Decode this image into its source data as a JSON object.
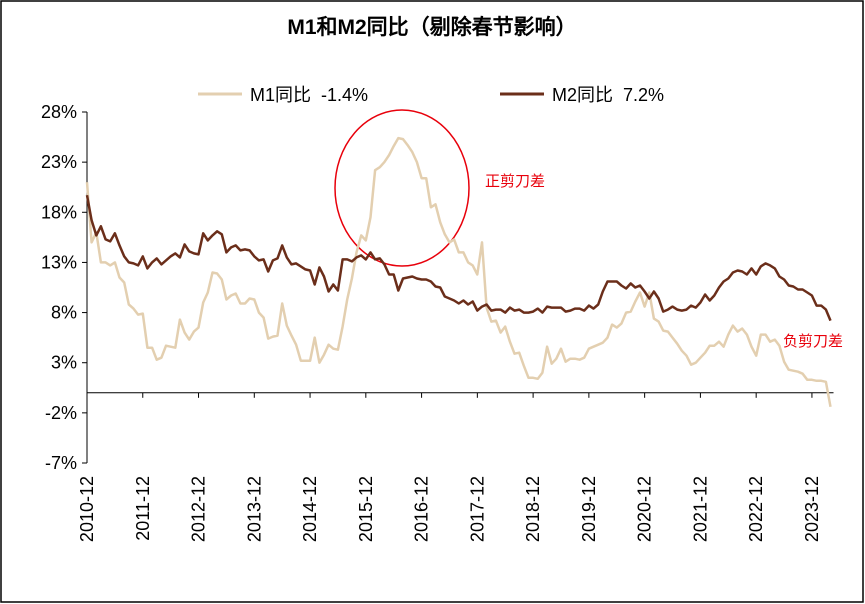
{
  "chart_data": {
    "type": "line",
    "title": "M1和M2同比（剔除春节影响）",
    "categories": [
      "2010-12",
      null,
      null,
      null,
      null,
      null,
      null,
      null,
      null,
      null,
      null,
      null,
      "2011-12",
      null,
      null,
      null,
      null,
      null,
      null,
      null,
      null,
      null,
      null,
      null,
      "2012-12",
      null,
      null,
      null,
      null,
      null,
      null,
      null,
      null,
      null,
      null,
      null,
      "2013-12",
      null,
      null,
      null,
      null,
      null,
      null,
      null,
      null,
      null,
      null,
      null,
      "2014-12",
      null,
      null,
      null,
      null,
      null,
      null,
      null,
      null,
      null,
      null,
      null,
      "2015-12",
      null,
      null,
      null,
      null,
      null,
      null,
      null,
      null,
      null,
      null,
      null,
      "2016-12",
      null,
      null,
      null,
      null,
      null,
      null,
      null,
      null,
      null,
      null,
      null,
      "2017-12",
      null,
      null,
      null,
      null,
      null,
      null,
      null,
      null,
      null,
      null,
      null,
      "2018-12",
      null,
      null,
      null,
      null,
      null,
      null,
      null,
      null,
      null,
      null,
      null,
      "2019-12",
      null,
      null,
      null,
      null,
      null,
      null,
      null,
      null,
      null,
      null,
      null,
      "2020-12",
      null,
      null,
      null,
      null,
      null,
      null,
      null,
      null,
      null,
      null,
      null,
      "2021-12",
      null,
      null,
      null,
      null,
      null,
      null,
      null,
      null,
      null,
      null,
      null,
      "2022-12",
      null,
      null,
      null,
      null,
      null,
      null,
      null,
      null,
      null,
      null,
      null,
      "2023-12",
      null,
      null,
      null,
      null
    ],
    "series": [
      {
        "name": "M1同比  -1.4%",
        "color": "#e3cfb0",
        "values": [
          21,
          15,
          16,
          13,
          13,
          12.7,
          13,
          11.5,
          11,
          8.8,
          8.4,
          7.8,
          7.9,
          4.5,
          4.5,
          3.3,
          3.5,
          4.7,
          4.6,
          4.5,
          7.3,
          6,
          5.3,
          6.1,
          6.5,
          9,
          10,
          12,
          11.9,
          11.3,
          9.3,
          9.7,
          9.9,
          8.9,
          8.9,
          9.4,
          9.3,
          8,
          7.5,
          5.4,
          5.6,
          5.7,
          8.9,
          6.7,
          5.7,
          4.8,
          3.2,
          3.2,
          3.2,
          5.5,
          3,
          3.8,
          4.8,
          4.4,
          4.3,
          6.6,
          9.3,
          11.4,
          14,
          15.7,
          15.2,
          17.5,
          22.2,
          22.5,
          23,
          23.7,
          24.6,
          25.4,
          25.3,
          24.7,
          24,
          23,
          21.4,
          21.4,
          18.5,
          18.8,
          17,
          15.8,
          15,
          15.3,
          14,
          14,
          13,
          12.7,
          11.8,
          15,
          8.5,
          7.1,
          7.2,
          6,
          6.6,
          5.1,
          3.9,
          4,
          2.7,
          1.5,
          1.5,
          1.4,
          2,
          4.6,
          2.9,
          3.4,
          4.4,
          3.1,
          3.4,
          3.4,
          3.3,
          3.5,
          4.4,
          4.6,
          4.8,
          5,
          5.5,
          6.8,
          6.5,
          6.9,
          8,
          8.1,
          9.1,
          10,
          8.6,
          10,
          7.4,
          7.1,
          6.2,
          6.1,
          5.5,
          4.9,
          4.2,
          3.7,
          2.8,
          3,
          3.5,
          4,
          4.7,
          4.7,
          5.1,
          4.6,
          5.8,
          6.7,
          6.1,
          6.4,
          5.8,
          4.6,
          3.7,
          5.8,
          5.8,
          5.1,
          5.3,
          4.7,
          3.1,
          2.3,
          2.2,
          2.1,
          1.9,
          1.3,
          1.3,
          1.2,
          1.2,
          1.1,
          -1.4
        ]
      },
      {
        "name": "M2同比  7.2%",
        "color": "#6b2e1a",
        "values": [
          19.7,
          17.2,
          15.7,
          16.6,
          15.3,
          15.1,
          15.9,
          14.7,
          13.6,
          13,
          12.9,
          12.7,
          13.6,
          12.4,
          13,
          13.4,
          12.8,
          13.2,
          13.6,
          13.9,
          13.5,
          14.8,
          14.1,
          13.9,
          13.8,
          15.9,
          15.2,
          15.7,
          16.1,
          15.8,
          14,
          14.5,
          14.7,
          14.2,
          14.3,
          14.2,
          13.6,
          13.2,
          13.3,
          12.1,
          13.2,
          13.4,
          14.7,
          13.5,
          12.8,
          12.9,
          12.6,
          12.3,
          12.2,
          10.8,
          12.5,
          11.6,
          10.1,
          10.8,
          10.2,
          13.3,
          13.3,
          13.1,
          13.5,
          13.7,
          13.3,
          14,
          13.3,
          13.4,
          12.8,
          11.8,
          11.8,
          10.2,
          11.4,
          11.5,
          11.6,
          11.4,
          11.3,
          11.3,
          11.1,
          10.6,
          10.5,
          9.6,
          9.4,
          9.2,
          8.9,
          9.2,
          8.8,
          9.1,
          8.2,
          8.6,
          8.8,
          8.2,
          8.3,
          8.3,
          8,
          8.5,
          8.2,
          8.3,
          8,
          8,
          8.1,
          8.4,
          8,
          8.6,
          8.5,
          8.5,
          8.5,
          8.1,
          8.2,
          8.4,
          8.4,
          8.2,
          8.7,
          8.4,
          8.8,
          10.1,
          11.1,
          11.1,
          11.1,
          10.7,
          10.4,
          10.9,
          10.5,
          10.7,
          10.1,
          9.4,
          10.1,
          9.4,
          8.1,
          8.3,
          8.6,
          8.3,
          8.2,
          8.3,
          8.7,
          8.5,
          9,
          9.8,
          9.2,
          9.7,
          10.5,
          11.1,
          11.4,
          12,
          12.2,
          12.1,
          11.8,
          12.4,
          11.8,
          12.6,
          12.9,
          12.7,
          12.4,
          11.6,
          11.3,
          10.7,
          10.6,
          10.3,
          10.3,
          10,
          9.7,
          8.7,
          8.7,
          8.3,
          7.2
        ]
      }
    ],
    "ylim": [
      -7,
      28
    ],
    "yticks": [
      {
        "value": -7,
        "label": "-7%"
      },
      {
        "value": -2,
        "label": "-2%"
      },
      {
        "value": 3,
        "label": "3%"
      },
      {
        "value": 8,
        "label": "8%"
      },
      {
        "value": 13,
        "label": "13%"
      },
      {
        "value": 18,
        "label": "18%"
      },
      {
        "value": 23,
        "label": "23%"
      },
      {
        "value": 28,
        "label": "28%"
      }
    ],
    "annotations": [
      "正剪刀差",
      "负剪刀差"
    ],
    "legend": "top"
  }
}
